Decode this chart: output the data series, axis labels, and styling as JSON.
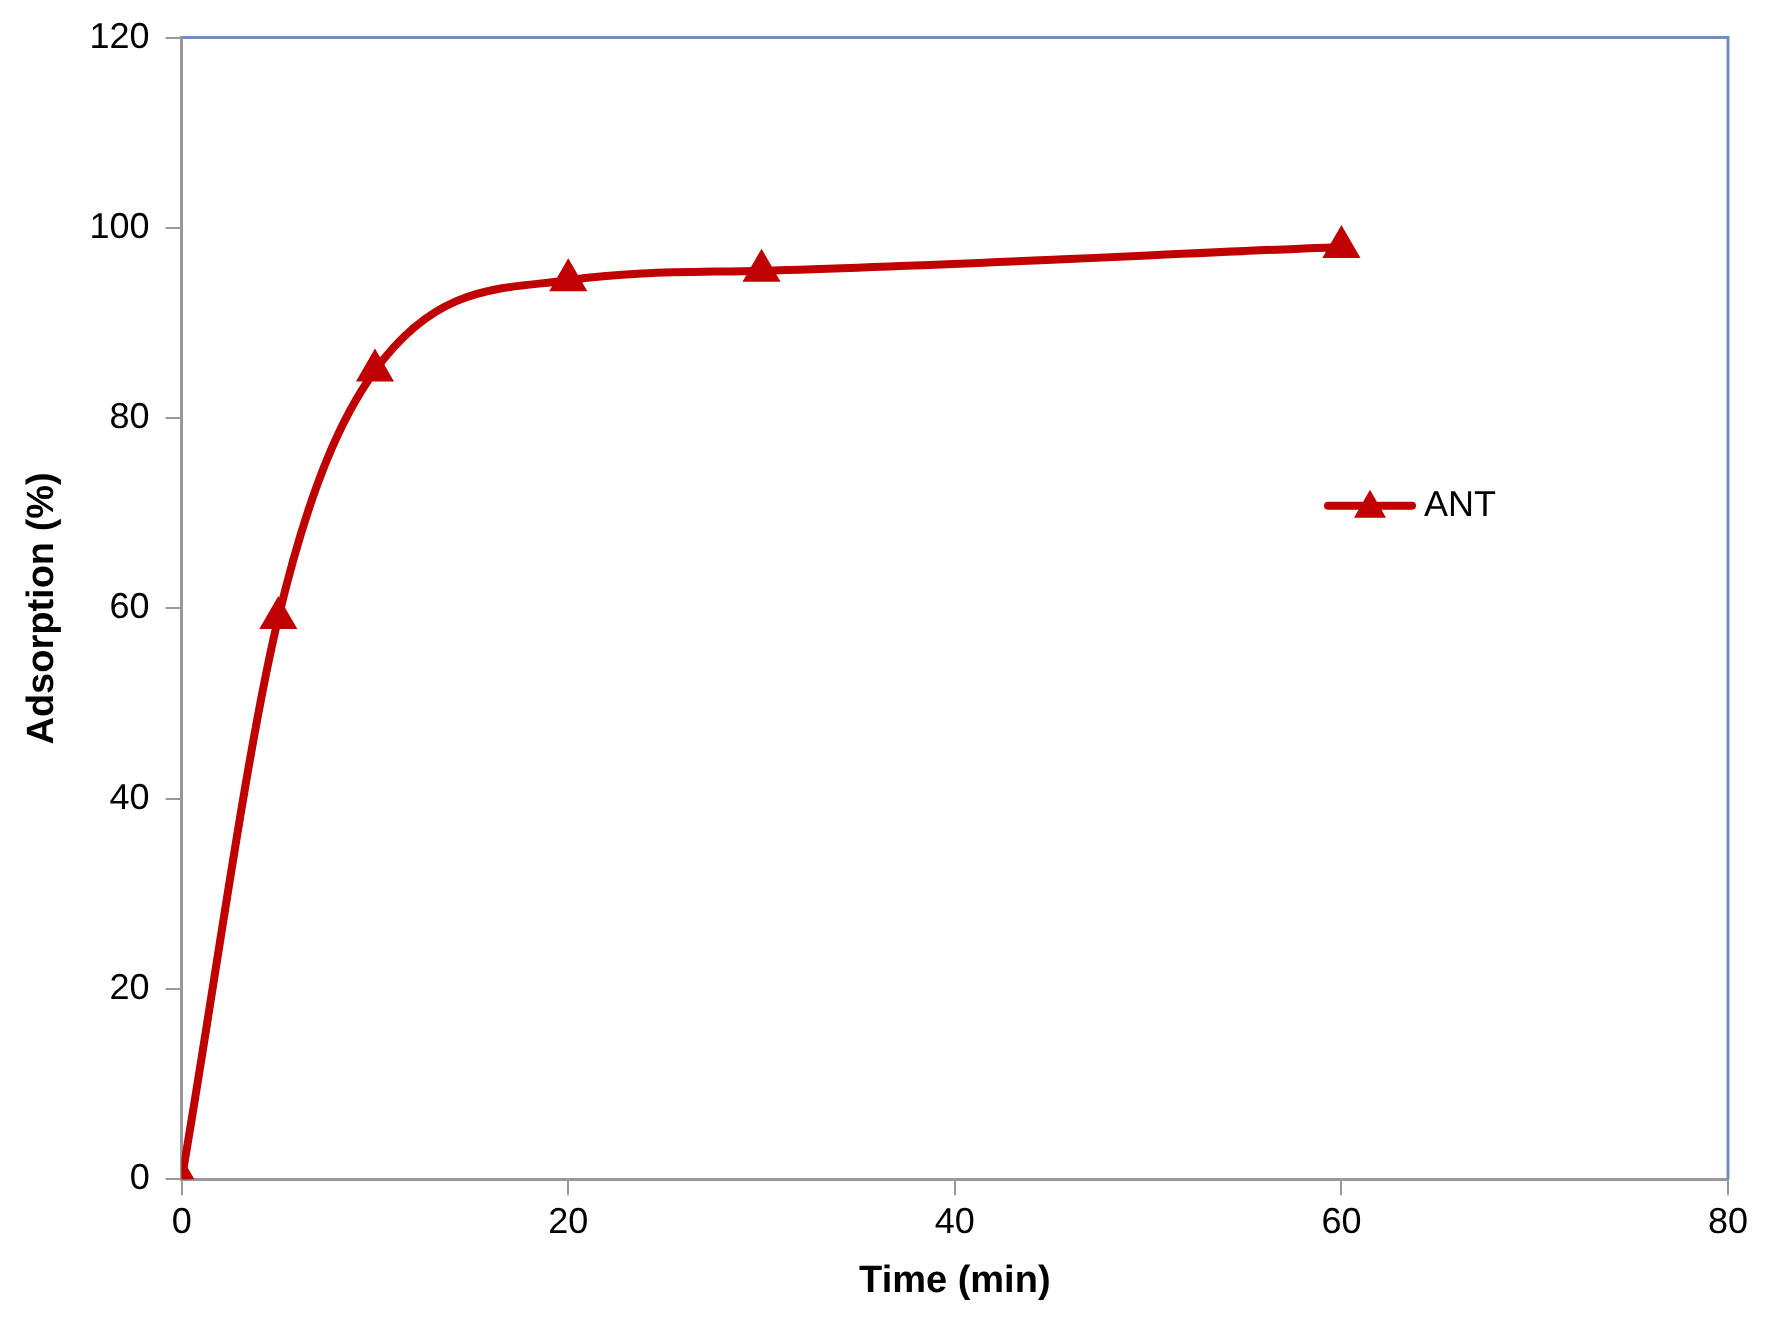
{
  "chart_data": {
    "type": "line",
    "xlabel": "Time (min)",
    "ylabel": "Adsorption (%)",
    "x": [
      0,
      5,
      10,
      20,
      30,
      60
    ],
    "series": [
      {
        "name": "ANT",
        "color": "#c00000",
        "values": [
          0,
          59,
          85,
          94.5,
          95.5,
          98
        ]
      }
    ],
    "xlim": [
      0,
      80
    ],
    "xticks": [
      0,
      20,
      40,
      60,
      80
    ],
    "ylim": [
      0,
      120
    ],
    "yticks": [
      0,
      20,
      40,
      60,
      80,
      100,
      120
    ],
    "grid": false,
    "legend": "right",
    "marker": "triangle",
    "line_style": "solid"
  }
}
